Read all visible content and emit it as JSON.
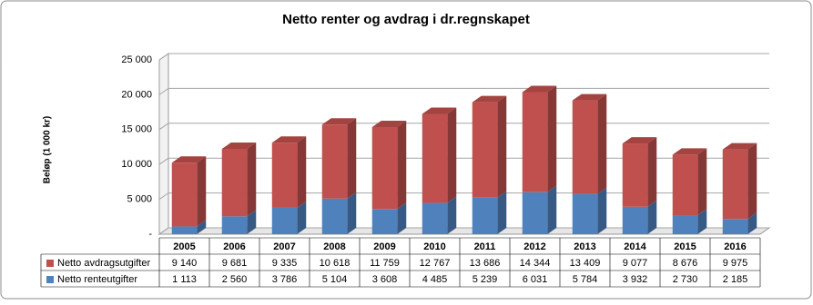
{
  "chart_data": {
    "type": "bar3d_stacked_table",
    "title": "Netto renter og avdrag i dr.regnskapet",
    "ylabel": "Beløp (1 000 kr)",
    "categories": [
      "2005",
      "2006",
      "2007",
      "2008",
      "2009",
      "2010",
      "2011",
      "2012",
      "2013",
      "2014",
      "2015",
      "2016"
    ],
    "series": [
      {
        "name": "Netto avdragsutgifter",
        "color": "#c0504d",
        "values": [
          9140,
          9681,
          9335,
          10618,
          11759,
          12767,
          13686,
          14344,
          13409,
          9077,
          8676,
          9975
        ],
        "value_labels": [
          "9 140",
          "9 681",
          "9 335",
          "10 618",
          "11 759",
          "12 767",
          "13 686",
          "14 344",
          "13 409",
          "9 077",
          "8 676",
          "9 975"
        ]
      },
      {
        "name": "Netto renteutgifter",
        "color": "#4f81bd",
        "values": [
          1113,
          2560,
          3786,
          5104,
          3608,
          4485,
          5239,
          6031,
          5784,
          3932,
          2730,
          2185
        ],
        "value_labels": [
          "1 113",
          "2 560",
          "3 786",
          "5 104",
          "3 608",
          "4 485",
          "5 239",
          "6 031",
          "5 784",
          "3 932",
          "2 730",
          "2 185"
        ]
      }
    ],
    "ylim": [
      0,
      25000
    ],
    "yticks": [
      {
        "value": 0,
        "label": "-"
      },
      {
        "value": 5000,
        "label": "5 000"
      },
      {
        "value": 10000,
        "label": "10 000"
      },
      {
        "value": 15000,
        "label": "15 000"
      },
      {
        "value": 20000,
        "label": "20 000"
      },
      {
        "value": 25000,
        "label": "25 000"
      }
    ],
    "grid": true
  }
}
